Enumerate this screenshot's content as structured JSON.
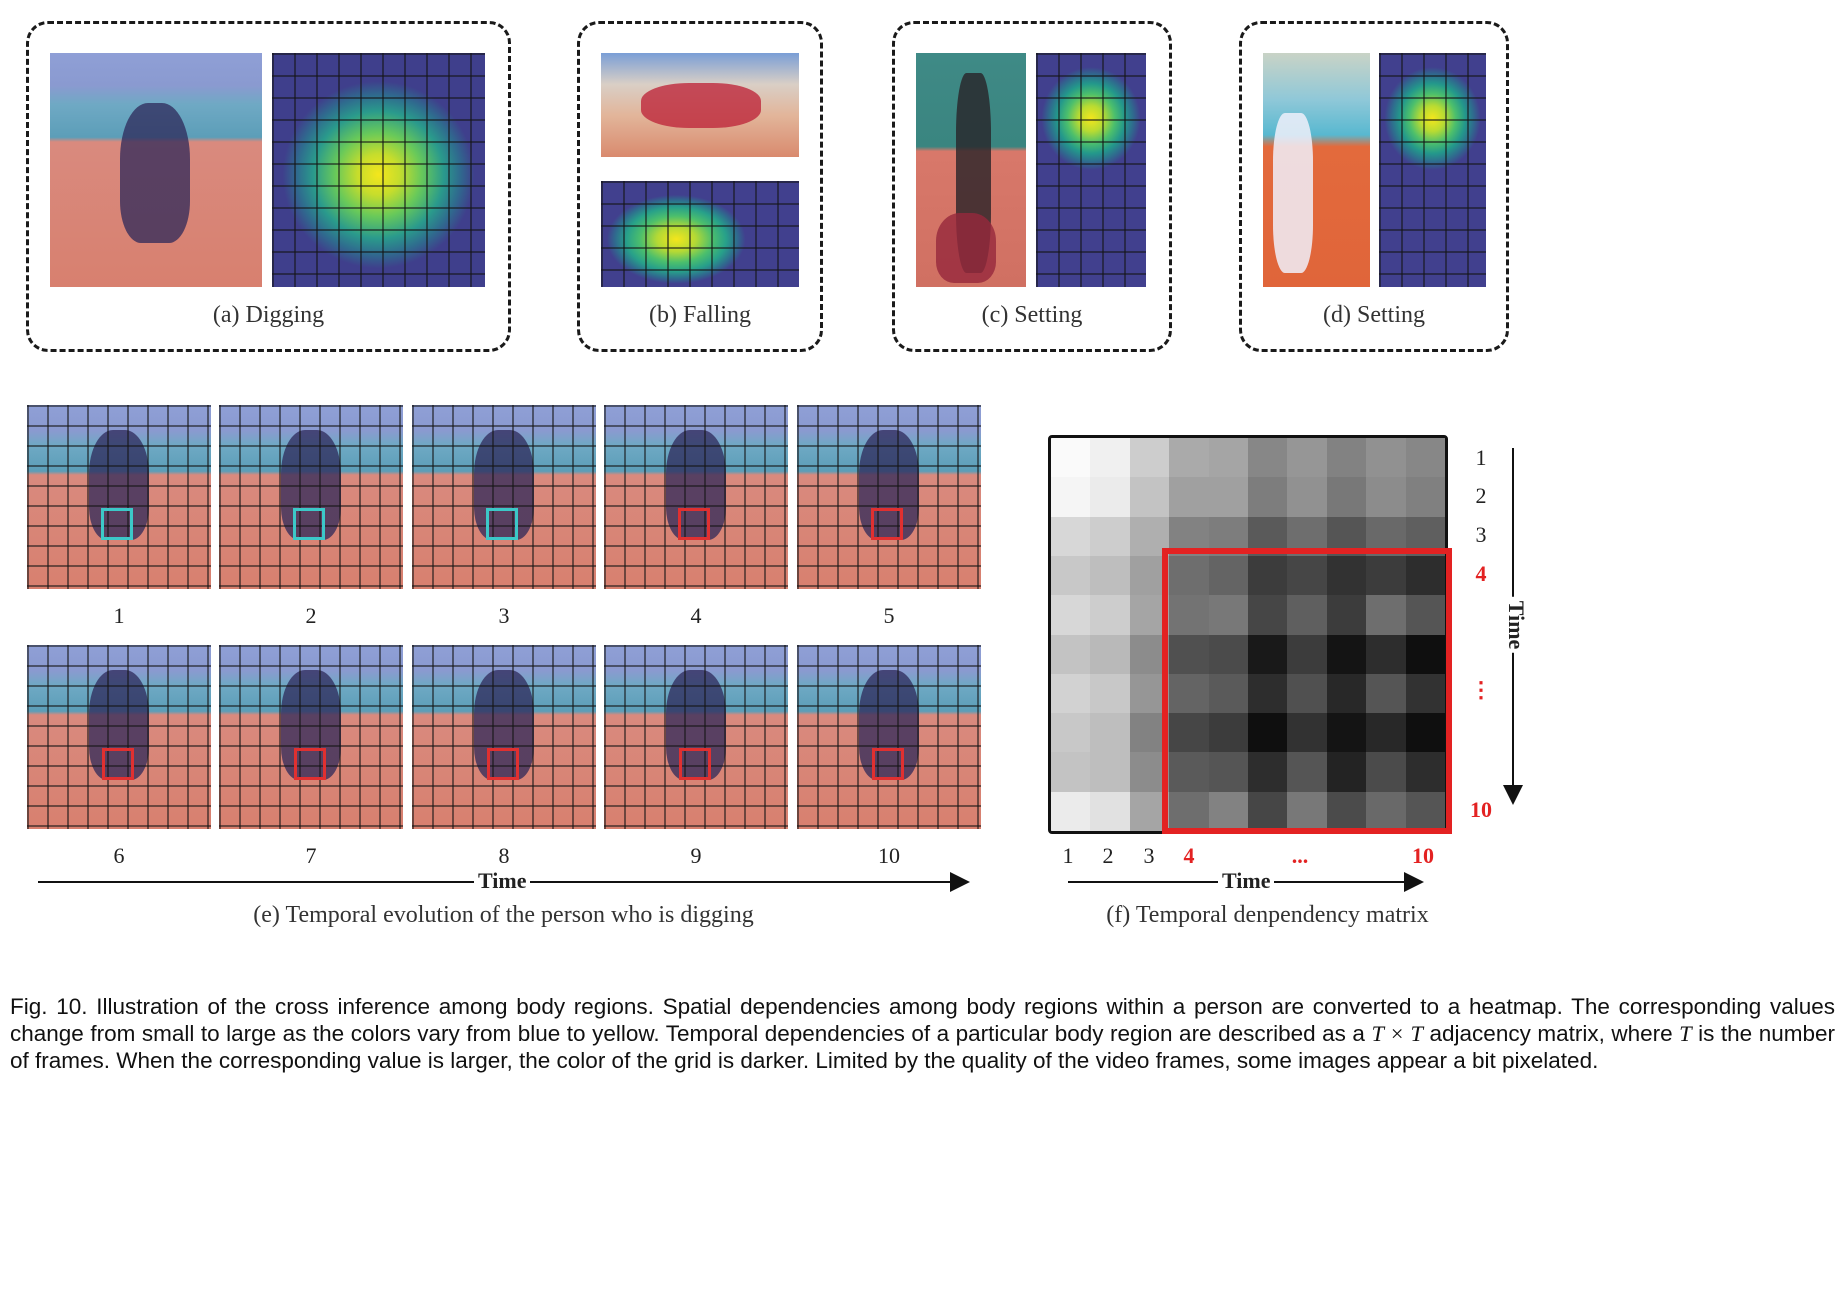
{
  "panels": {
    "a": {
      "caption": "(a) Digging"
    },
    "b": {
      "caption": "(b) Falling"
    },
    "c": {
      "caption": "(c) Setting"
    },
    "d": {
      "caption": "(d) Setting"
    },
    "e": {
      "caption": "(e) Temporal evolution of the person who is digging",
      "axis_label": "Time",
      "frames": [
        "1",
        "2",
        "3",
        "4",
        "5",
        "6",
        "7",
        "8",
        "9",
        "10"
      ],
      "marker_colors": [
        "#3cc8c8",
        "#3cc8c8",
        "#3cc8c8",
        "#e03030",
        "#e03030",
        "#e03030",
        "#e03030",
        "#e03030",
        "#e03030",
        "#e03030"
      ]
    },
    "f": {
      "caption": "(f) Temporal denpendency matrix",
      "axis_label_x": "Time",
      "axis_label_y": "Time",
      "x_ticks": [
        {
          "t": "1",
          "red": false
        },
        {
          "t": "2",
          "red": false
        },
        {
          "t": "3",
          "red": false
        },
        {
          "t": "4",
          "red": true
        },
        {
          "t": "...",
          "red": true
        },
        {
          "t": "10",
          "red": true
        }
      ],
      "y_ticks": [
        {
          "t": "1",
          "red": false
        },
        {
          "t": "2",
          "red": false
        },
        {
          "t": "3",
          "red": false
        },
        {
          "t": "4",
          "red": true
        },
        {
          "t": "⋮",
          "red": true
        },
        {
          "t": "10",
          "red": true
        }
      ],
      "highlight_color": "#e32222"
    }
  },
  "caption": {
    "part1": "Fig. 10. Illustration of the cross inference among body regions. Spatial dependencies among body regions within a person are converted to a heatmap. The corresponding values change from small to large as the colors vary from blue to yellow. Temporal dependencies of a particular body region are described as a ",
    "math1": "T × T",
    "part2": " adjacency matrix, where ",
    "math2": "T",
    "part3": " is the number of frames. When the corresponding value is larger, the color of the grid is darker. Limited by the quality of the video frames, some images appear a bit pixelated."
  },
  "matrix": {
    "rows": 10,
    "cols": 10,
    "gray": [
      [
        250,
        240,
        205,
        170,
        165,
        135,
        150,
        130,
        145,
        135
      ],
      [
        245,
        235,
        195,
        160,
        160,
        125,
        145,
        120,
        140,
        128
      ],
      [
        215,
        205,
        175,
        130,
        125,
        90,
        110,
        85,
        105,
        95
      ],
      [
        200,
        190,
        160,
        110,
        100,
        60,
        70,
        50,
        60,
        45
      ],
      [
        215,
        205,
        165,
        115,
        120,
        70,
        95,
        60,
        110,
        85
      ],
      [
        195,
        185,
        140,
        80,
        75,
        25,
        60,
        20,
        45,
        15
      ],
      [
        210,
        200,
        150,
        100,
        90,
        45,
        80,
        40,
        85,
        50
      ],
      [
        200,
        190,
        130,
        70,
        60,
        15,
        50,
        20,
        40,
        15
      ],
      [
        195,
        190,
        140,
        90,
        85,
        45,
        85,
        35,
        75,
        45
      ],
      [
        235,
        225,
        165,
        110,
        130,
        70,
        120,
        75,
        105,
        85
      ]
    ]
  }
}
